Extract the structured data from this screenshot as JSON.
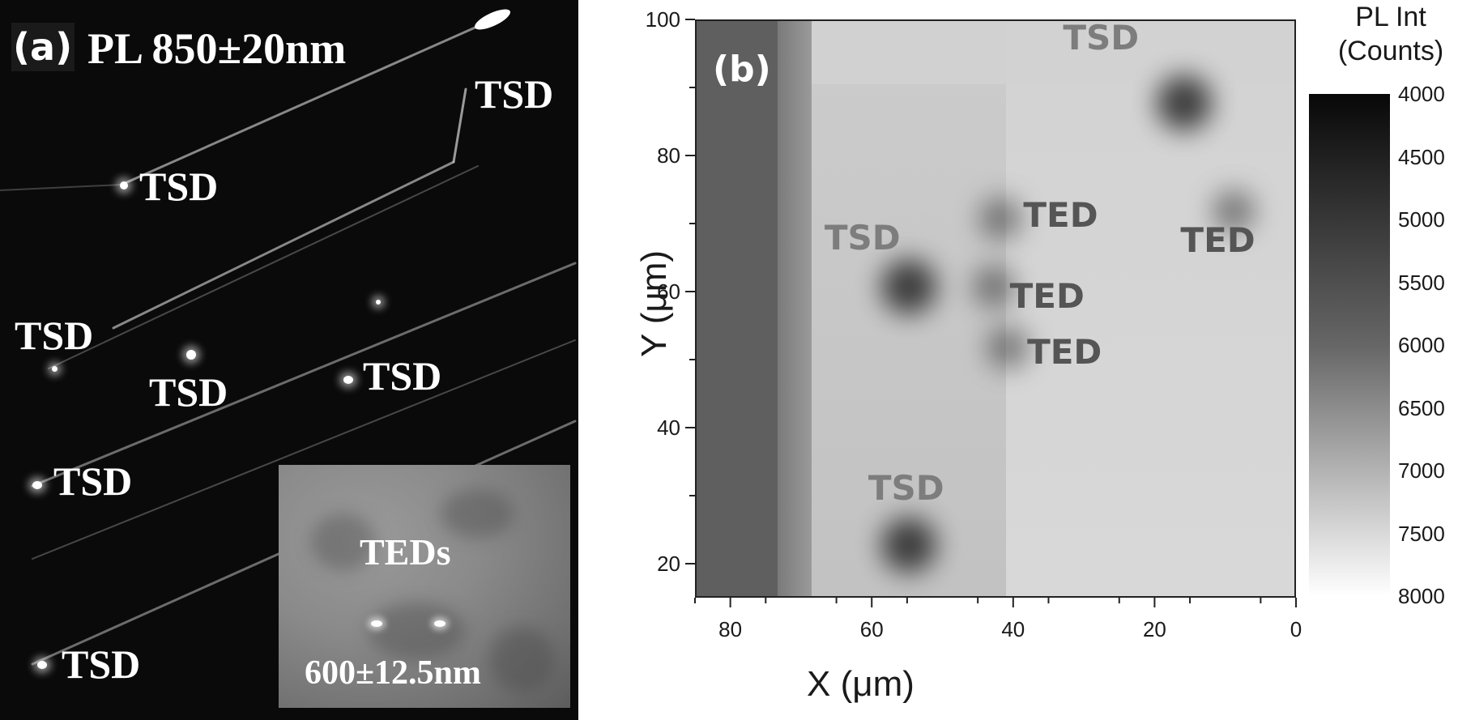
{
  "panel_a": {
    "tag": "(a)",
    "title": "PL 850±20nm",
    "labels": [
      "TSD",
      "TSD",
      "TSD",
      "TSD",
      "TSD",
      "TSD",
      "TSD"
    ],
    "inset": {
      "label": "TEDs",
      "wavelength": "600±12.5nm"
    }
  },
  "panel_b": {
    "tag": "(b)",
    "labels": [
      "TSD",
      "TSD",
      "TSD",
      "TED",
      "TED",
      "TED",
      "TED"
    ],
    "colorbar": {
      "title_line1": "PL Int",
      "title_line2": "(Counts)",
      "ticks": [
        "4000",
        "4500",
        "5000",
        "5500",
        "6000",
        "6500",
        "7000",
        "7500",
        "8000"
      ]
    }
  },
  "chart_data": {
    "type": "heatmap",
    "xlabel": "X (μm)",
    "ylabel": "Y (μm)",
    "xlim": [
      85,
      0
    ],
    "ylim": [
      15,
      100
    ],
    "x_ticks": [
      80,
      60,
      40,
      20,
      0
    ],
    "y_ticks": [
      100,
      80,
      60,
      40,
      20
    ],
    "colorbar_range": [
      4000,
      8000
    ],
    "colormap": "gray (dark = low counts)",
    "annotations": [
      {
        "text": "TSD",
        "x": 16,
        "y": 88
      },
      {
        "text": "TSD",
        "x": 55,
        "y": 61
      },
      {
        "text": "TSD",
        "x": 55,
        "y": 23
      },
      {
        "text": "TED",
        "x": 42,
        "y": 71
      },
      {
        "text": "TED",
        "x": 43,
        "y": 61
      },
      {
        "text": "TED",
        "x": 41,
        "y": 52
      },
      {
        "text": "TED",
        "x": 9,
        "y": 72
      }
    ]
  }
}
